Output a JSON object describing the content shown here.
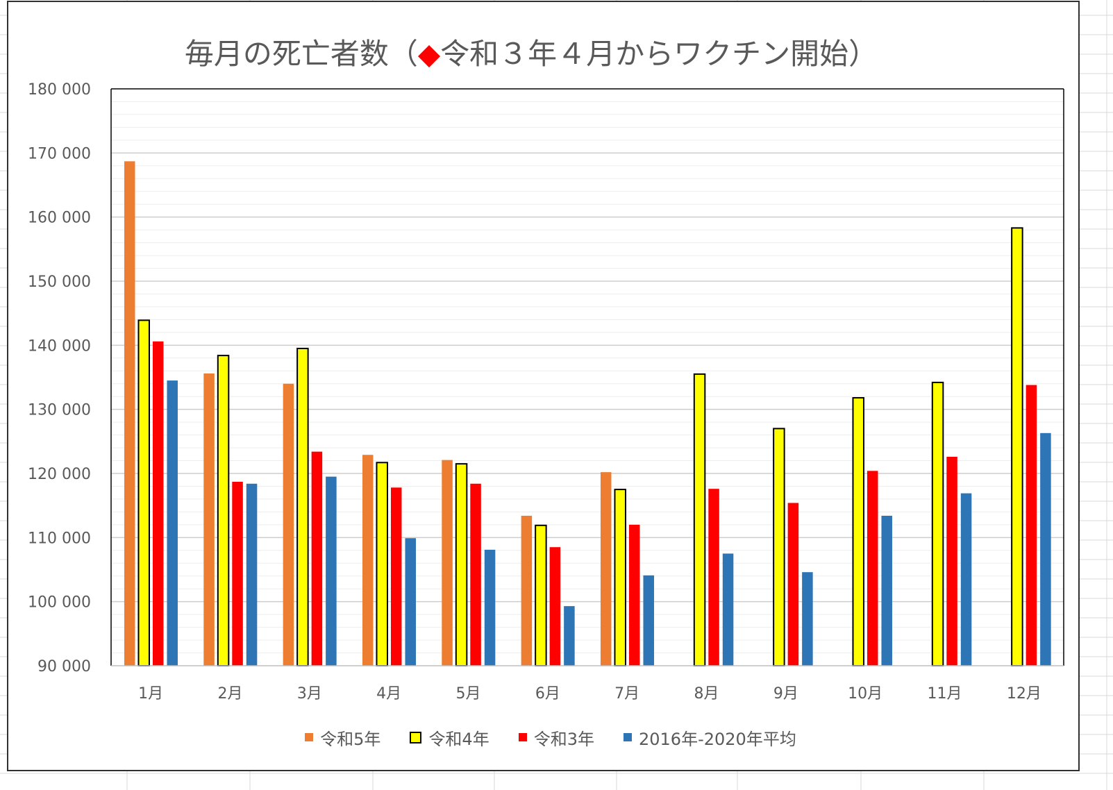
{
  "chart_data": {
    "type": "bar",
    "title": "毎月の死亡者数（◆令和３年４月からワクチン開始）",
    "title_marker": "◆",
    "title_marker_color": "#FF0000",
    "categories": [
      "1月",
      "2月",
      "3月",
      "4月",
      "5月",
      "6月",
      "7月",
      "8月",
      "9月",
      "10月",
      "11月",
      "12月"
    ],
    "series": [
      {
        "name": "令和5年",
        "color": "#ED7D31",
        "values": [
          168700,
          135600,
          134000,
          122900,
          122100,
          113400,
          120200,
          null,
          null,
          null,
          null,
          null
        ]
      },
      {
        "name": "令和4年",
        "color": "#FFFF00",
        "border_color": "#000000",
        "values": [
          143900,
          138400,
          139500,
          121700,
          121500,
          111900,
          117500,
          135500,
          127000,
          131800,
          134200,
          158300
        ]
      },
      {
        "name": "令和3年",
        "color": "#FF0000",
        "values": [
          140600,
          118700,
          123400,
          117800,
          118400,
          108500,
          112000,
          117600,
          115400,
          120400,
          122600,
          133800
        ]
      },
      {
        "name": "2016年-2020年平均",
        "color": "#2E75B6",
        "values": [
          134500,
          118400,
          119500,
          109900,
          108100,
          99300,
          104100,
          107500,
          104600,
          113400,
          116900,
          126300
        ]
      }
    ],
    "ylim": [
      90000,
      180000
    ],
    "yticks": [
      90000,
      100000,
      110000,
      120000,
      130000,
      140000,
      150000,
      160000,
      170000,
      180000
    ],
    "ytick_labels": [
      "90 000",
      "100 000",
      "110 000",
      "120 000",
      "130 000",
      "140 000",
      "150 000",
      "160 000",
      "170 000",
      "180 000"
    ],
    "minor_grid_step": 2000,
    "grid": true,
    "legend_position": "bottom"
  }
}
